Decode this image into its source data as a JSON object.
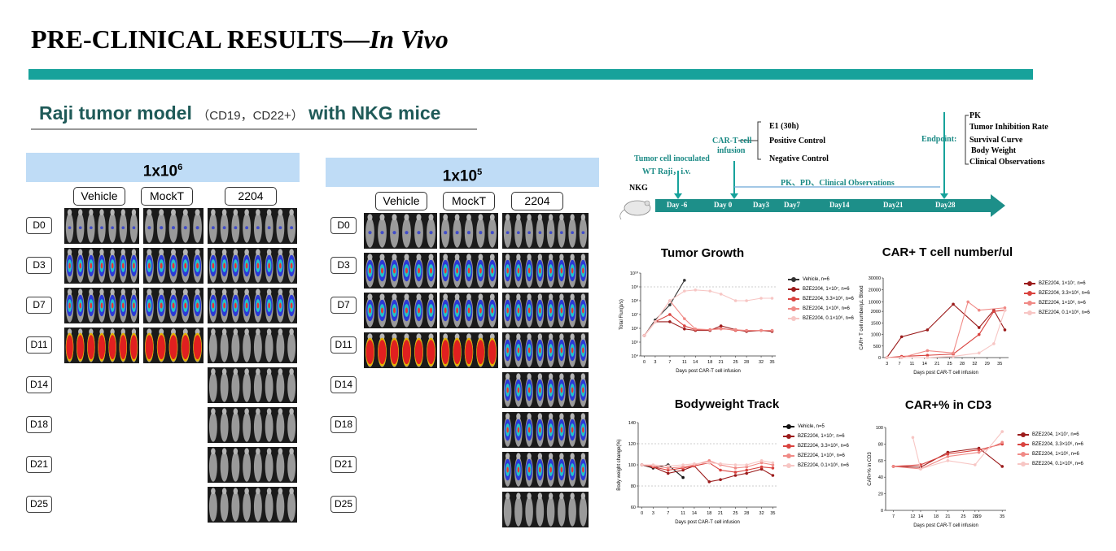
{
  "slide": {
    "title_main": "PRE-CLINICAL RESULTS—",
    "title_italic": "In Vivo",
    "subtitle_main": "Raji tumor model",
    "subtitle_paren": "（CD19，CD22+）",
    "subtitle_end": "with NKG mice"
  },
  "left_panel": {
    "dose_base": "1x10",
    "dose_exp": "6",
    "groups": [
      "Vehicle",
      "MockT",
      "2204"
    ],
    "days": [
      "D0",
      "D3",
      "D7",
      "D11",
      "D14",
      "D18",
      "D21",
      "D25"
    ]
  },
  "right_panel": {
    "dose_base": "1x10",
    "dose_exp": "5",
    "groups": [
      "Vehicle",
      "MockT",
      "2204"
    ],
    "days": [
      "D0",
      "D3",
      "D7",
      "D11",
      "D14",
      "D18",
      "D21",
      "D25"
    ]
  },
  "timeline": {
    "mouse_label": "NKG",
    "tumor_label_1": "Tumor cell inoculated",
    "tumor_label_2": "WT Raji，i.v.",
    "cart_label_1": "CAR-T cell",
    "cart_label_2": "infusion",
    "controls": [
      "E1 (30h)",
      "Positive Control",
      "Negative Control"
    ],
    "mid_label": "PK、PD、Clinical Observations",
    "endpoint_label": "Endpoint:",
    "endpoints": [
      "PK",
      "Tumor Inhibition Rate",
      "Survival Curve",
      "Body Weight",
      "Clinical Observations"
    ],
    "days": [
      "Day -6",
      "Day 0",
      "Day3",
      "Day7",
      "Day14",
      "Day21",
      "Day28"
    ],
    "colors": {
      "arrow": "#17a29b",
      "bar": "#1d8f89"
    }
  },
  "charts": {
    "tumor_growth": {
      "title": "Tumor Growth",
      "ylabel": "Total Flux(p/s)",
      "xlabel": "Days post CAR-T cell infusion",
      "yticks": [
        "10⁴",
        "10⁵",
        "10⁶",
        "10⁷",
        "10⁸",
        "10⁹",
        "10¹⁰"
      ],
      "xticks": [
        "0",
        "3",
        "7",
        "11",
        "14",
        "18",
        "21",
        "25",
        "28",
        "32",
        "35"
      ],
      "legend": [
        "Vehicle, n=6",
        "BZE2204, 1×10⁷, n=6",
        "BZE2204, 3.3×10⁶, n=6",
        "BZE2204, 1×10⁶, n=6",
        "BZE2204, 0.1×10⁶, n=6"
      ]
    },
    "car_t_number": {
      "title": "CAR+ T cell number/ul",
      "ylabel": "CAR+ T cell number/μL Blood",
      "xlabel": "Days post CAR-T cell infusion",
      "yticks": [
        "0",
        "500",
        "1000",
        "1500",
        "2000",
        "10000",
        "20000",
        "30000"
      ],
      "xticks": [
        "3",
        "7",
        "11",
        "14",
        "21",
        "25",
        "28",
        "32",
        "29",
        "35"
      ],
      "legend": [
        "BZE2204, 1×10⁷, n=6",
        "BZE2204, 3.3×10⁶, n=6",
        "BZE2204, 1×10⁶, n=6",
        "BZE2204, 0.1×10⁶, n=6"
      ]
    },
    "bodyweight": {
      "title": "Bodyweight Track",
      "ylabel": "Body weight change(%)",
      "xlabel": "Days post CAR-T cell infusion",
      "yticks": [
        "60",
        "80",
        "100",
        "120",
        "140"
      ],
      "xticks": [
        "0",
        "3",
        "7",
        "11",
        "14",
        "18",
        "21",
        "25",
        "28",
        "32",
        "35"
      ],
      "legend": [
        "Vehicle, n=5",
        "BZE2204, 1×10⁷, n=6",
        "BZE2204, 3.3×10⁶, n=6",
        "BZE2204, 1×10⁶, n=6",
        "BZE2204, 0.1×10⁶, n=6"
      ]
    },
    "car_pct": {
      "title": "CAR+% in CD3",
      "ylabel": "CAR+% in CD3",
      "xlabel": "Days post CAR-T cell infusion",
      "yticks": [
        "0",
        "20",
        "40",
        "60",
        "80",
        "100"
      ],
      "xticks": [
        "7",
        "12",
        "14",
        "18",
        "21",
        "25",
        "28",
        "29",
        "35"
      ],
      "legend": [
        "BZE2204, 1×10⁷, n=6",
        "BZE2204, 3.3×10⁶, n=6",
        "BZE2204, 1×10⁶, n=6",
        "BZE2204, 0.1×10⁶, n=6"
      ]
    }
  },
  "chart_data": [
    {
      "type": "line",
      "title": "Tumor Growth",
      "xlabel": "Days post CAR-T cell infusion",
      "ylabel": "Total Flux(p/s)",
      "yscale": "log",
      "ylim": [
        10000,
        10000000000
      ],
      "series": [
        {
          "name": "Vehicle, n=6",
          "color": "#333333",
          "x": [
            0,
            3,
            7,
            11
          ],
          "y": [
            300000,
            4000000,
            50000000,
            3000000000
          ]
        },
        {
          "name": "BZE2204, 1×10⁷, n=6",
          "color": "#9b1b1b",
          "x": [
            0,
            3,
            7,
            11,
            14,
            18,
            21,
            25,
            28,
            32,
            35
          ],
          "y": [
            300000,
            3000000,
            3000000,
            900000,
            700000,
            700000,
            1500000,
            800000,
            600000,
            700000,
            600000
          ]
        },
        {
          "name": "BZE2204, 3.3×10⁶, n=6",
          "color": "#d9433f",
          "x": [
            0,
            3,
            7,
            11,
            14,
            18,
            21,
            25,
            28,
            32,
            35
          ],
          "y": [
            300000,
            3000000,
            10000000,
            1500000,
            800000,
            800000,
            1000000,
            700000,
            700000,
            700000,
            700000
          ]
        },
        {
          "name": "BZE2204, 1×10⁶, n=6",
          "color": "#f08a86",
          "x": [
            0,
            3,
            7,
            11,
            14,
            18,
            21,
            25,
            28,
            32,
            35
          ],
          "y": [
            300000,
            3000000,
            100000000,
            5000000,
            900000,
            800000,
            900000,
            800000,
            700000,
            700000,
            700000
          ]
        },
        {
          "name": "BZE2204, 0.1×10⁶, n=6",
          "color": "#f7c6c4",
          "x": [
            0,
            3,
            7,
            11,
            14,
            18,
            21,
            25,
            28,
            32,
            35
          ],
          "y": [
            300000,
            3000000,
            100000000,
            500000000,
            600000000,
            500000000,
            300000000,
            100000000,
            100000000,
            150000000,
            150000000
          ]
        }
      ]
    },
    {
      "type": "line",
      "title": "CAR+ T cell number/ul",
      "xlabel": "Days post CAR-T cell infusion",
      "ylabel": "CAR+ T cell number/μL Blood",
      "series": [
        {
          "name": "BZE2204, 1×10⁷, n=6",
          "color": "#9b1b1b",
          "x": [
            3,
            7,
            14,
            21,
            28,
            32,
            35
          ],
          "y": [
            0,
            900,
            1200,
            8000,
            1300,
            3000,
            1200
          ]
        },
        {
          "name": "BZE2204, 3.3×10⁶, n=6",
          "color": "#d9433f",
          "x": [
            3,
            7,
            14,
            21,
            28,
            32,
            35
          ],
          "y": [
            0,
            50,
            100,
            150,
            1000,
            2000,
            3000
          ]
        },
        {
          "name": "BZE2204, 1×10⁶, n=6",
          "color": "#f08a86",
          "x": [
            3,
            7,
            14,
            21,
            25,
            28,
            35
          ],
          "y": [
            0,
            0,
            300,
            200,
            10000,
            3000,
            5000
          ]
        },
        {
          "name": "BZE2204, 0.1×10⁶, n=6",
          "color": "#f7c6c4",
          "x": [
            3,
            7,
            14,
            21,
            28,
            32,
            35
          ],
          "y": [
            0,
            0,
            0,
            50,
            200,
            600,
            3000
          ]
        }
      ]
    },
    {
      "type": "line",
      "title": "Bodyweight Track",
      "xlabel": "Days post CAR-T cell infusion",
      "ylabel": "Body weight change(%)",
      "ylim": [
        60,
        140
      ],
      "series": [
        {
          "name": "Vehicle, n=5",
          "color": "#111111",
          "x": [
            0,
            3,
            7,
            11
          ],
          "y": [
            100,
            97,
            100,
            88
          ]
        },
        {
          "name": "BZE2204, 1×10⁷, n=6",
          "color": "#9b1b1b",
          "x": [
            0,
            3,
            7,
            11,
            14,
            18,
            21,
            25,
            28,
            32,
            35
          ],
          "y": [
            100,
            98,
            92,
            95,
            99,
            84,
            86,
            90,
            92,
            96,
            90
          ]
        },
        {
          "name": "BZE2204, 3.3×10⁶, n=6",
          "color": "#d9433f",
          "x": [
            0,
            3,
            7,
            11,
            14,
            18,
            21,
            25,
            28,
            32,
            35
          ],
          "y": [
            100,
            98,
            95,
            97,
            99,
            102,
            95,
            93,
            95,
            98,
            97
          ]
        },
        {
          "name": "BZE2204, 1×10⁶, n=6",
          "color": "#f08a86",
          "x": [
            0,
            3,
            7,
            11,
            14,
            18,
            21,
            25,
            28,
            32,
            35
          ],
          "y": [
            100,
            99,
            97,
            98,
            100,
            104,
            100,
            97,
            98,
            102,
            100
          ]
        },
        {
          "name": "BZE2204, 0.1×10⁶, n=6",
          "color": "#f7c6c4",
          "x": [
            0,
            3,
            7,
            11,
            14,
            18,
            21,
            25,
            28,
            32,
            35
          ],
          "y": [
            100,
            100,
            99,
            100,
            101,
            102,
            101,
            100,
            100,
            104,
            102
          ]
        }
      ]
    },
    {
      "type": "line",
      "title": "CAR+% in CD3",
      "xlabel": "Days post CAR-T cell infusion",
      "ylabel": "CAR+% in CD3",
      "ylim": [
        0,
        100
      ],
      "series": [
        {
          "name": "BZE2204, 1×10⁷, n=6",
          "color": "#9b1b1b",
          "x": [
            7,
            14,
            21,
            29,
            35
          ],
          "y": [
            53,
            52,
            70,
            75,
            53
          ]
        },
        {
          "name": "BZE2204, 3.3×10⁶, n=6",
          "color": "#d9433f",
          "x": [
            7,
            14,
            21,
            29,
            35
          ],
          "y": [
            53,
            55,
            68,
            73,
            80
          ]
        },
        {
          "name": "BZE2204, 1×10⁶, n=6",
          "color": "#f08a86",
          "x": [
            7,
            14,
            21,
            29,
            35
          ],
          "y": [
            53,
            50,
            65,
            70,
            82
          ]
        },
        {
          "name": "BZE2204, 0.1×10⁶, n=6",
          "color": "#f7c6c4",
          "x": [
            12,
            14,
            21,
            28,
            35
          ],
          "y": [
            88,
            50,
            60,
            55,
            95
          ]
        }
      ]
    }
  ]
}
